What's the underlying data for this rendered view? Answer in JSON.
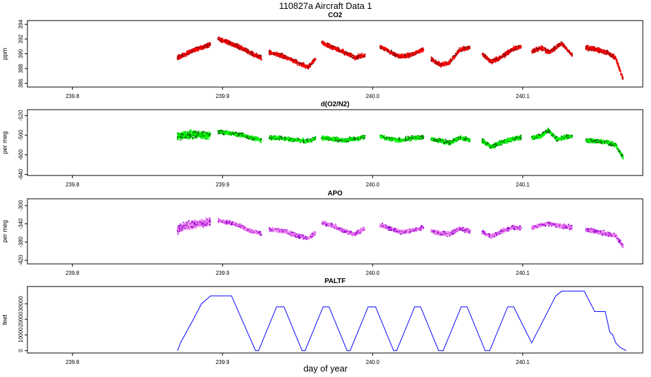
{
  "header": {
    "title": "110827a   Aircraft Data 1"
  },
  "xaxis": {
    "label": "day of year",
    "ticks": [
      239.8,
      239.9,
      240.0,
      240.1
    ],
    "range": [
      239.77,
      240.18
    ]
  },
  "chart_data": [
    {
      "type": "scatter",
      "title": "CO2",
      "ylabel": "ppm",
      "color": "#ff0000",
      "edge_color": "#8b0000",
      "ylim": [
        385.5,
        394.5
      ],
      "yticks": [
        386,
        388,
        390,
        392,
        394
      ],
      "xlabel": "day of year",
      "segments": [
        {
          "x": [
            239.87,
            239.876,
            239.882,
            239.888,
            239.892
          ],
          "y": [
            389.5,
            390.0,
            390.6,
            391.0,
            391.3
          ]
        },
        {
          "x": [
            239.897,
            239.903,
            239.91,
            239.917,
            239.926
          ],
          "y": [
            392.0,
            391.6,
            391.0,
            390.3,
            389.4
          ]
        },
        {
          "x": [
            239.931,
            239.94,
            239.949,
            239.957,
            239.962
          ],
          "y": [
            390.2,
            389.7,
            388.9,
            388.2,
            389.3
          ]
        },
        {
          "x": [
            239.966,
            239.972,
            239.98,
            239.988,
            239.995
          ],
          "y": [
            391.5,
            391.0,
            390.3,
            389.5,
            389.8
          ]
        },
        {
          "x": [
            240.005,
            240.012,
            240.019,
            240.026,
            240.034
          ],
          "y": [
            391.0,
            390.2,
            389.6,
            389.9,
            390.6
          ]
        },
        {
          "x": [
            240.039,
            240.045,
            240.051,
            240.058,
            240.065
          ],
          "y": [
            389.3,
            388.5,
            388.8,
            390.5,
            390.9
          ]
        },
        {
          "x": [
            240.073,
            240.079,
            240.086,
            240.093,
            240.099
          ],
          "y": [
            390.0,
            388.9,
            389.6,
            390.6,
            391.0
          ]
        },
        {
          "x": [
            240.106,
            240.112,
            240.118,
            240.126,
            240.133
          ],
          "y": [
            390.3,
            390.8,
            390.2,
            391.4,
            389.8
          ]
        },
        {
          "x": [
            240.142,
            240.149,
            240.156,
            240.162,
            240.167
          ],
          "y": [
            390.8,
            390.6,
            390.2,
            389.4,
            386.5
          ]
        }
      ]
    },
    {
      "type": "scatter",
      "title": "d(O2/N2)",
      "ylabel": "per meg",
      "color": "#00ff00",
      "edge_color": "#006400",
      "ylim": [
        -642,
        -508
      ],
      "yticks": [
        -640,
        -600,
        -560,
        -520
      ],
      "segments": [
        {
          "x": [
            239.87,
            239.876,
            239.882,
            239.888,
            239.892
          ],
          "y": [
            -562,
            -560,
            -558,
            -560,
            -561
          ]
        },
        {
          "x": [
            239.897,
            239.905,
            239.912,
            239.919,
            239.926
          ],
          "y": [
            -553,
            -556,
            -559,
            -565,
            -570
          ]
        },
        {
          "x": [
            239.931,
            239.94,
            239.949,
            239.957,
            239.962
          ],
          "y": [
            -565,
            -566,
            -570,
            -572,
            -566
          ]
        },
        {
          "x": [
            239.966,
            239.974,
            239.981,
            239.989,
            239.995
          ],
          "y": [
            -565,
            -568,
            -570,
            -567,
            -563
          ]
        },
        {
          "x": [
            240.005,
            240.012,
            240.019,
            240.026,
            240.034
          ],
          "y": [
            -563,
            -568,
            -570,
            -566,
            -564
          ]
        },
        {
          "x": [
            240.039,
            240.046,
            240.052,
            240.058,
            240.065
          ],
          "y": [
            -568,
            -572,
            -575,
            -565,
            -570
          ]
        },
        {
          "x": [
            240.073,
            240.079,
            240.086,
            240.093,
            240.099
          ],
          "y": [
            -572,
            -583,
            -575,
            -568,
            -565
          ]
        },
        {
          "x": [
            240.106,
            240.112,
            240.117,
            240.123,
            240.133
          ],
          "y": [
            -566,
            -562,
            -550,
            -568,
            -562
          ]
        },
        {
          "x": [
            240.142,
            240.149,
            240.156,
            240.162,
            240.167
          ],
          "y": [
            -570,
            -572,
            -574,
            -580,
            -605
          ]
        }
      ]
    },
    {
      "type": "scatter",
      "title": "APO",
      "ylabel": "per meg",
      "color": "#ee82ee",
      "edge_color": "#9400d3",
      "ylim": [
        -428,
        -285
      ],
      "yticks": [
        -420,
        -380,
        -340,
        -300
      ],
      "segments": [
        {
          "x": [
            239.87,
            239.876,
            239.882,
            239.888,
            239.892
          ],
          "y": [
            -352,
            -345,
            -340,
            -338,
            -336
          ]
        },
        {
          "x": [
            239.897,
            239.905,
            239.912,
            239.919,
            239.926
          ],
          "y": [
            -333,
            -337,
            -345,
            -356,
            -362
          ]
        },
        {
          "x": [
            239.931,
            239.94,
            239.949,
            239.957,
            239.962
          ],
          "y": [
            -352,
            -355,
            -365,
            -372,
            -360
          ]
        },
        {
          "x": [
            239.966,
            239.973,
            239.98,
            239.988,
            239.995
          ],
          "y": [
            -338,
            -343,
            -355,
            -362,
            -350
          ]
        },
        {
          "x": [
            240.005,
            240.012,
            240.019,
            240.026,
            240.034
          ],
          "y": [
            -343,
            -350,
            -358,
            -355,
            -348
          ]
        },
        {
          "x": [
            240.039,
            240.046,
            240.052,
            240.058,
            240.065
          ],
          "y": [
            -356,
            -362,
            -362,
            -350,
            -357
          ]
        },
        {
          "x": [
            240.073,
            240.079,
            240.086,
            240.093,
            240.099
          ],
          "y": [
            -358,
            -368,
            -356,
            -348,
            -350
          ]
        },
        {
          "x": [
            240.106,
            240.112,
            240.118,
            240.126,
            240.133
          ],
          "y": [
            -350,
            -342,
            -340,
            -345,
            -348
          ]
        },
        {
          "x": [
            240.142,
            240.149,
            240.156,
            240.162,
            240.167
          ],
          "y": [
            -352,
            -357,
            -362,
            -366,
            -390
          ]
        }
      ]
    },
    {
      "type": "line",
      "title": "PALTF",
      "ylabel": "feet",
      "color": "#0000ff",
      "ylim": [
        -1500,
        41000
      ],
      "yticks": [
        0,
        10000,
        20000,
        30000
      ],
      "x": [
        239.87,
        239.872,
        239.88,
        239.886,
        239.892,
        239.897,
        239.906,
        239.922,
        239.924,
        239.936,
        239.941,
        239.953,
        239.955,
        239.967,
        239.971,
        239.983,
        239.985,
        239.997,
        240.002,
        240.014,
        240.016,
        240.028,
        240.032,
        240.044,
        240.047,
        240.059,
        240.063,
        240.075,
        240.078,
        240.09,
        240.094,
        240.106,
        240.122,
        240.126,
        240.131,
        240.141,
        240.148,
        240.155,
        240.158,
        240.16,
        240.162,
        240.165,
        240.169
      ],
      "y": [
        0,
        5000,
        19000,
        30000,
        35000,
        35000,
        35000,
        0,
        0,
        28000,
        28000,
        0,
        0,
        28000,
        28000,
        0,
        0,
        28000,
        28000,
        0,
        0,
        28000,
        28000,
        0,
        0,
        28000,
        28000,
        0,
        0,
        28000,
        28000,
        5000,
        35000,
        38000,
        38000,
        38000,
        25000,
        25000,
        12000,
        10000,
        5000,
        2000,
        0
      ]
    }
  ]
}
